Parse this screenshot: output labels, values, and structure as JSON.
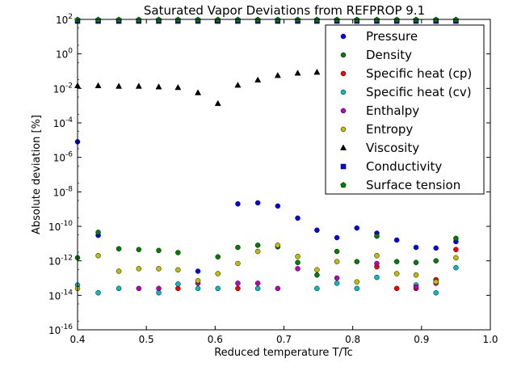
{
  "chart_data": {
    "type": "scatter",
    "title": "Saturated Vapor Deviations from REFPROP 9.1",
    "xlabel": "Reduced temperature T/Tc",
    "ylabel": "Absolute deviation [%]",
    "xlim": [
      0.4,
      1.0
    ],
    "ylim_exponent": [
      -16,
      2
    ],
    "yscale": "log",
    "grid": false,
    "legend_position": "top-right",
    "x_ticks": [
      {
        "value": 0.4,
        "label": "0.4"
      },
      {
        "value": 0.5,
        "label": "0.5"
      },
      {
        "value": 0.6,
        "label": "0.6"
      },
      {
        "value": 0.7,
        "label": "0.7"
      },
      {
        "value": 0.8,
        "label": "0.8"
      },
      {
        "value": 0.9,
        "label": "0.9"
      },
      {
        "value": 1.0,
        "label": "1.0"
      }
    ],
    "y_ticks": [
      {
        "exp": 2,
        "base": "10",
        "sup": "2"
      },
      {
        "exp": 0,
        "base": "10",
        "sup": "0"
      },
      {
        "exp": -2,
        "base": "10",
        "sup": "-2"
      },
      {
        "exp": -4,
        "base": "10",
        "sup": "-4"
      },
      {
        "exp": -6,
        "base": "10",
        "sup": "-6"
      },
      {
        "exp": -8,
        "base": "10",
        "sup": "-8"
      },
      {
        "exp": -10,
        "base": "10",
        "sup": "-10"
      },
      {
        "exp": -12,
        "base": "10",
        "sup": "-12"
      },
      {
        "exp": -14,
        "base": "10",
        "sup": "-14"
      },
      {
        "exp": -16,
        "base": "10",
        "sup": "-16"
      }
    ],
    "series": [
      {
        "name": "Pressure",
        "marker": "circle",
        "color": "#0000ff",
        "x": [
          0.4,
          0.43,
          0.575,
          0.633,
          0.662,
          0.691,
          0.72,
          0.748,
          0.777,
          0.806,
          0.835,
          0.864,
          0.892,
          0.921,
          0.95
        ],
        "y": [
          8e-06,
          3e-11,
          2.5e-13,
          2e-09,
          2.3e-09,
          1.5e-09,
          3e-10,
          6e-11,
          2.2e-11,
          8e-11,
          4e-11,
          1.6e-11,
          6e-12,
          5.5e-12,
          1.3e-11
        ]
      },
      {
        "name": "Density",
        "marker": "circle",
        "color": "#008000",
        "x": [
          0.4,
          0.43,
          0.46,
          0.489,
          0.518,
          0.546,
          0.604,
          0.633,
          0.662,
          0.691,
          0.72,
          0.748,
          0.777,
          0.806,
          0.835,
          0.864,
          0.892,
          0.921,
          0.95
        ],
        "y": [
          1.5e-12,
          4.5e-11,
          5e-12,
          4.5e-12,
          4e-12,
          3e-12,
          1.7e-12,
          6e-12,
          8e-12,
          6.5e-12,
          8e-13,
          1.5e-13,
          3.5e-12,
          9e-13,
          2.7e-11,
          9e-13,
          8e-13,
          1e-12,
          2e-11
        ]
      },
      {
        "name": "Specific heat (cp)",
        "marker": "circle",
        "color": "#ff0000",
        "x": [
          0.546,
          0.633,
          0.835,
          0.864,
          0.892,
          0.921,
          0.95
        ],
        "y": [
          2.5e-14,
          2.5e-14,
          4.5e-13,
          2.5e-14,
          2.5e-14,
          8e-14,
          4.5e-12
        ]
      },
      {
        "name": "Specific heat (cv)",
        "marker": "circle",
        "color": "#00bfbf",
        "x": [
          0.4,
          0.43,
          0.46,
          0.518,
          0.546,
          0.575,
          0.604,
          0.662,
          0.748,
          0.777,
          0.806,
          0.835,
          0.892,
          0.921,
          0.95
        ],
        "y": [
          4e-14,
          1.4e-14,
          2.5e-14,
          1.4e-14,
          4.5e-14,
          2.5e-14,
          2.5e-14,
          2.5e-14,
          2.5e-14,
          5e-14,
          2.5e-14,
          1.1e-13,
          4e-14,
          1.4e-14,
          4e-13
        ]
      },
      {
        "name": "Enthalpy",
        "marker": "circle",
        "color": "#bf00bf",
        "x": [
          0.489,
          0.518,
          0.575,
          0.633,
          0.662,
          0.691,
          0.72,
          0.777,
          0.835,
          0.892,
          0.921
        ],
        "y": [
          2.5e-14,
          2.5e-14,
          5e-14,
          5e-14,
          5e-14,
          2.5e-14,
          3.5e-13,
          1e-13,
          7e-13,
          3e-14,
          5e-14
        ]
      },
      {
        "name": "Entropy",
        "marker": "circle",
        "color": "#bfbf00",
        "x": [
          0.4,
          0.43,
          0.46,
          0.489,
          0.518,
          0.546,
          0.575,
          0.604,
          0.633,
          0.662,
          0.691,
          0.72,
          0.748,
          0.777,
          0.806,
          0.835,
          0.864,
          0.892,
          0.921,
          0.95
        ],
        "y": [
          2.5e-14,
          2e-12,
          2.5e-13,
          3.5e-13,
          3.5e-13,
          3e-13,
          7e-14,
          1.8e-13,
          7e-13,
          3.5e-12,
          8e-12,
          1.8e-12,
          3e-13,
          9e-13,
          6e-14,
          2e-12,
          1.8e-13,
          1.5e-13,
          6e-14,
          1.5e-12
        ]
      },
      {
        "name": "Viscosity",
        "marker": "triangle",
        "color": "#000000",
        "x": [
          0.4,
          0.43,
          0.46,
          0.489,
          0.518,
          0.546,
          0.575,
          0.604,
          0.633,
          0.662,
          0.691,
          0.72,
          0.748
        ],
        "y": [
          0.014,
          0.014,
          0.013,
          0.013,
          0.012,
          0.011,
          0.0055,
          0.0013,
          0.015,
          0.03,
          0.055,
          0.075,
          0.085
        ]
      },
      {
        "name": "Conductivity",
        "marker": "square",
        "color": "#0000ff",
        "x": [
          0.4,
          0.43,
          0.46,
          0.489,
          0.518,
          0.546,
          0.575,
          0.604,
          0.633,
          0.662,
          0.691,
          0.72,
          0.748,
          0.777,
          0.806,
          0.835,
          0.864,
          0.892,
          0.921,
          0.95
        ],
        "y": [
          80,
          80,
          80,
          80,
          80,
          80,
          80,
          80,
          80,
          80,
          80,
          80,
          80,
          80,
          80,
          80,
          80,
          80,
          80,
          80
        ]
      },
      {
        "name": "Surface tension",
        "marker": "pentagon",
        "color": "#008000",
        "x": [
          0.4,
          0.43,
          0.46,
          0.489,
          0.518,
          0.546,
          0.575,
          0.604,
          0.633,
          0.662,
          0.691,
          0.72,
          0.748,
          0.777,
          0.806,
          0.835,
          0.864,
          0.892,
          0.921,
          0.95
        ],
        "y": [
          95,
          95,
          95,
          95,
          95,
          95,
          95,
          95,
          95,
          95,
          95,
          95,
          95,
          95,
          95,
          95,
          95,
          95,
          95,
          95
        ]
      }
    ]
  }
}
